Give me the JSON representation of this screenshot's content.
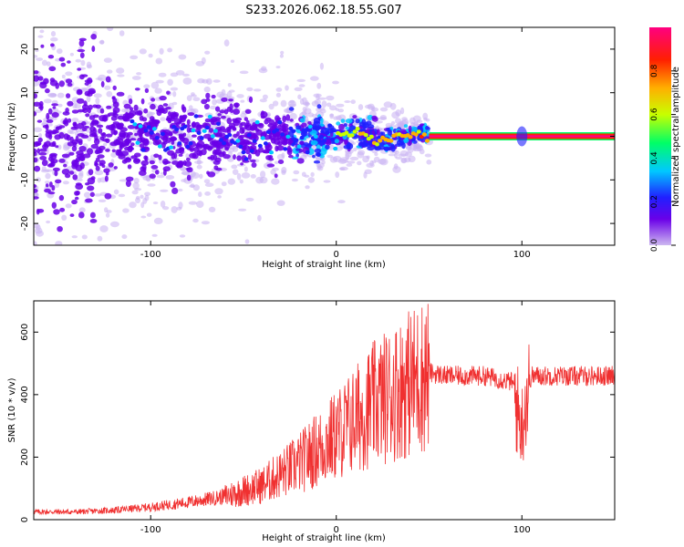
{
  "chart_data": [
    {
      "type": "heatmap",
      "title": "S233.2026.062.18.55.G07",
      "xlabel": "Height of straight line (km)",
      "ylabel": "Frequency (Hz)",
      "xlim": [
        -163,
        150
      ],
      "ylim": [
        -25,
        25
      ],
      "xticks": [
        -100,
        0,
        100
      ],
      "yticks": [
        -20,
        -10,
        0,
        10,
        20
      ],
      "colorbar": {
        "label": "Normalized spectral amplitude",
        "ticks": [
          "0.0",
          "0.2",
          "0.4",
          "0.6",
          "0.8"
        ],
        "tick_values": [
          0,
          0.2,
          0.4,
          0.6,
          0.8
        ],
        "range": [
          0,
          1
        ],
        "colormap": [
          "#cdb8f0",
          "#6a00e8",
          "#2020ff",
          "#00c8ff",
          "#00ff66",
          "#c8ff00",
          "#ffb000",
          "#ff2000",
          "#ff0080"
        ]
      },
      "features": {
        "scatter_region_x": [
          -163,
          50
        ],
        "scatter_half_width_hz": [
          14,
          2
        ],
        "line_region_x": [
          50,
          150
        ],
        "line_frequency_hz": 0,
        "line_amplitude": 0.95
      }
    },
    {
      "type": "line",
      "xlabel": "Height of straight line (km)",
      "ylabel": "SNR (10 * v/v)",
      "xlim": [
        -163,
        150
      ],
      "ylim": [
        0,
        700
      ],
      "xticks": [
        -100,
        0,
        100
      ],
      "yticks": [
        0,
        200,
        400,
        600
      ],
      "series": [
        {
          "name": "SNR",
          "color": "#f03030",
          "x": [
            -163,
            -140,
            -120,
            -100,
            -80,
            -60,
            -40,
            -20,
            0,
            20,
            40,
            50,
            60,
            80,
            95,
            98,
            100,
            102,
            105,
            120,
            150
          ],
          "values": [
            25,
            25,
            30,
            40,
            55,
            75,
            110,
            180,
            270,
            370,
            440,
            470,
            460,
            460,
            440,
            340,
            300,
            380,
            460,
            460,
            460
          ]
        }
      ]
    }
  ]
}
